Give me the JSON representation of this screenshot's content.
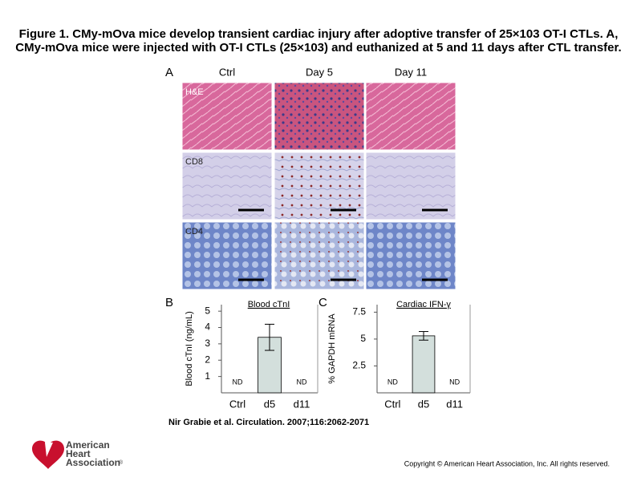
{
  "header": {
    "title": "Figure 1. CMy-mOva mice develop transient cardiac injury after adoptive transfer of 25×103 OT-I CTLs. A, CMy-mOva mice were injected with OT-I CTLs (25×103) and euthanized at 5 and 11 days after CTL transfer."
  },
  "panel_a": {
    "label": "A",
    "columns": [
      "Ctrl",
      "Day 5",
      "Day 11"
    ],
    "rows": [
      "H&E",
      "CD8",
      "CD4"
    ]
  },
  "chart_data": [
    {
      "type": "bar",
      "label": "B",
      "title": "Blood cTnI",
      "y_label": "Blood cTnI (ng/mL)",
      "categories": [
        "Ctrl",
        "d5",
        "d11"
      ],
      "values": [
        null,
        3.4,
        null
      ],
      "errors": [
        null,
        0.8,
        null
      ],
      "value_labels": [
        "ND",
        null,
        "ND"
      ],
      "color": "#d3dfdc",
      "ylim": [
        0,
        5.4
      ],
      "yticks": [
        1,
        2,
        3,
        4,
        5
      ]
    },
    {
      "type": "bar",
      "label": "C",
      "title": "Cardiac IFN-γ",
      "y_label": "% GAPDH mRNA",
      "categories": [
        "Ctrl",
        "d5",
        "d11"
      ],
      "values": [
        null,
        5.3,
        null
      ],
      "errors": [
        null,
        0.4,
        null
      ],
      "value_labels": [
        "ND",
        null,
        "ND"
      ],
      "color": "#d3dfdc",
      "ylim": [
        0,
        8.2
      ],
      "yticks": [
        2.5,
        5,
        7.5
      ]
    }
  ],
  "citation": "Nir Grabie et al. Circulation. 2007;116:2062-2071",
  "logo": {
    "lines": [
      "American",
      "Heart",
      "Association"
    ],
    "mark": "®"
  },
  "copyright": "Copyright © American Heart Association, Inc. All rights reserved."
}
